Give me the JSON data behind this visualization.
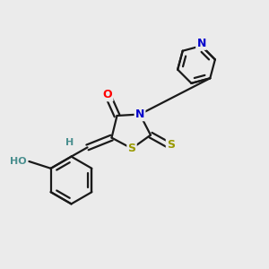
{
  "background_color": "#ebebeb",
  "atom_colors": {
    "O": "#ff0000",
    "N": "#0000cc",
    "S": "#999900",
    "C": "#1a1a1a",
    "H": "#4a8f8f"
  },
  "bond_width": 1.6,
  "dbo": 0.012
}
